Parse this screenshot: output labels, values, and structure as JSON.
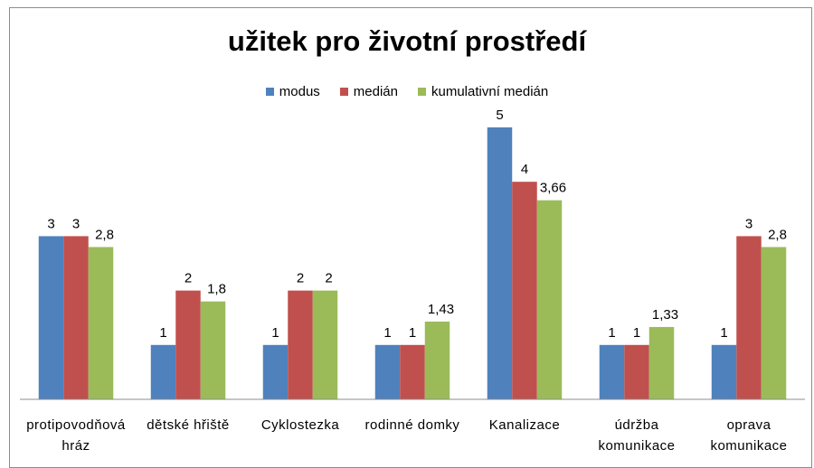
{
  "chart_data": {
    "type": "bar",
    "title": "užitek pro životní prostředí",
    "categories": [
      "protipovodňová hráz",
      "dětské hřiště",
      "Cyklostezka",
      "rodinné domky",
      "Kanalizace",
      "údržba komunikace",
      "oprava komunikace"
    ],
    "series": [
      {
        "name": "modus",
        "color": "#4f81bd",
        "values": [
          3,
          1,
          1,
          1,
          5,
          1,
          1
        ]
      },
      {
        "name": "medián",
        "color": "#c0504d",
        "values": [
          3,
          2,
          2,
          1,
          4,
          1,
          3
        ]
      },
      {
        "name": "kumulativní medián",
        "color": "#9bbb59",
        "values": [
          2.8,
          1.8,
          2,
          1.43,
          3.66,
          1.33,
          2.8
        ],
        "value_labels": [
          "2,8",
          "1,8",
          "2",
          "1,43",
          "3,66",
          "1,33",
          "2,8"
        ]
      }
    ],
    "legend": "top"
  }
}
